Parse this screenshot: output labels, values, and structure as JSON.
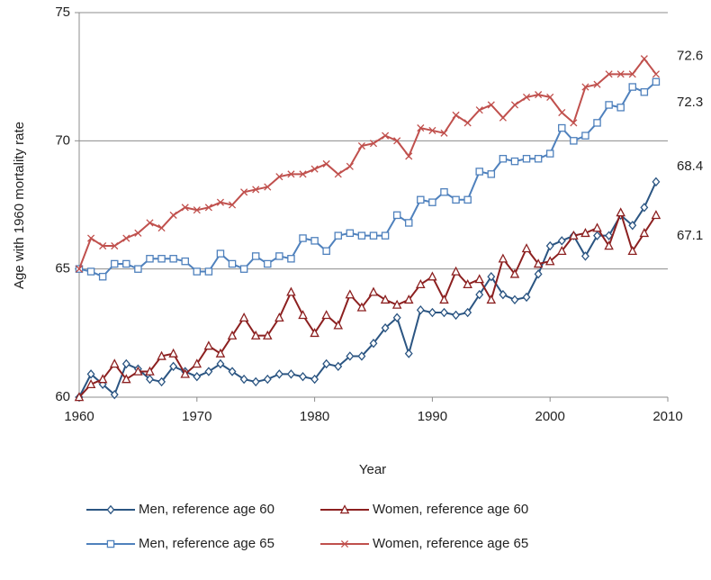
{
  "chart_data": {
    "type": "line",
    "x_label": "Year",
    "y_label": "Age with 1960 mortality rate",
    "x": [
      1960,
      1961,
      1962,
      1963,
      1964,
      1965,
      1966,
      1967,
      1968,
      1969,
      1970,
      1971,
      1972,
      1973,
      1974,
      1975,
      1976,
      1977,
      1978,
      1979,
      1980,
      1981,
      1982,
      1983,
      1984,
      1985,
      1986,
      1987,
      1988,
      1989,
      1990,
      1991,
      1992,
      1993,
      1994,
      1995,
      1996,
      1997,
      1998,
      1999,
      2000,
      2001,
      2002,
      2003,
      2004,
      2005,
      2006,
      2007,
      2008,
      2009
    ],
    "xlim": [
      1960,
      2010
    ],
    "xticks": [
      1960,
      1970,
      1980,
      1990,
      2000,
      2010
    ],
    "ylim": [
      60,
      75
    ],
    "yticks": [
      60,
      65,
      70,
      75
    ],
    "grid": true,
    "legend": "bottom",
    "series": [
      {
        "name": "Men, reference age 60",
        "color": "#2b5582",
        "marker": "diamond",
        "end_label": "68.4",
        "values": [
          60.0,
          60.9,
          60.5,
          60.1,
          61.3,
          61.1,
          60.7,
          60.6,
          61.2,
          61.0,
          60.8,
          61.0,
          61.3,
          61.0,
          60.7,
          60.6,
          60.7,
          60.9,
          60.9,
          60.8,
          60.7,
          61.3,
          61.2,
          61.6,
          61.6,
          62.1,
          62.7,
          63.1,
          61.7,
          63.4,
          63.3,
          63.3,
          63.2,
          63.3,
          64.0,
          64.7,
          64.0,
          63.8,
          63.9,
          64.8,
          65.9,
          66.1,
          66.3,
          65.5,
          66.3,
          66.3,
          67.1,
          66.7,
          67.4,
          68.4
        ]
      },
      {
        "name": "Women, reference age 60",
        "color": "#8c2020",
        "marker": "triangle",
        "end_label": "67.1",
        "values": [
          60.0,
          60.5,
          60.7,
          61.3,
          60.7,
          61.0,
          61.0,
          61.6,
          61.7,
          60.9,
          61.3,
          62.0,
          61.7,
          62.4,
          63.1,
          62.4,
          62.4,
          63.1,
          64.1,
          63.2,
          62.5,
          63.2,
          62.8,
          64.0,
          63.5,
          64.1,
          63.8,
          63.6,
          63.8,
          64.4,
          64.7,
          63.8,
          64.9,
          64.4,
          64.6,
          63.8,
          65.4,
          64.8,
          65.8,
          65.2,
          65.3,
          65.7,
          66.3,
          66.4,
          66.6,
          65.9,
          67.2,
          65.7,
          66.4,
          67.1
        ]
      },
      {
        "name": "Men, reference age 65",
        "color": "#4f81bd",
        "marker": "square",
        "end_label": "72.3",
        "values": [
          65.0,
          64.9,
          64.7,
          65.2,
          65.2,
          65.0,
          65.4,
          65.4,
          65.4,
          65.3,
          64.9,
          64.9,
          65.6,
          65.2,
          65.0,
          65.5,
          65.2,
          65.5,
          65.4,
          66.2,
          66.1,
          65.7,
          66.3,
          66.4,
          66.3,
          66.3,
          66.3,
          67.1,
          66.8,
          67.7,
          67.6,
          68.0,
          67.7,
          67.7,
          68.8,
          68.7,
          69.3,
          69.2,
          69.3,
          69.3,
          69.5,
          70.5,
          70.0,
          70.2,
          70.7,
          71.4,
          71.3,
          72.1,
          71.9,
          72.3
        ]
      },
      {
        "name": "Women, reference age 65",
        "color": "#c0504d",
        "marker": "cross",
        "end_label": "72.6",
        "values": [
          65.0,
          66.2,
          65.9,
          65.9,
          66.2,
          66.4,
          66.8,
          66.6,
          67.1,
          67.4,
          67.3,
          67.4,
          67.6,
          67.5,
          68.0,
          68.1,
          68.2,
          68.6,
          68.7,
          68.7,
          68.9,
          69.1,
          68.7,
          69.0,
          69.8,
          69.9,
          70.2,
          70.0,
          69.4,
          70.5,
          70.4,
          70.3,
          71.0,
          70.7,
          71.2,
          71.4,
          70.9,
          71.4,
          71.7,
          71.8,
          71.7,
          71.1,
          70.7,
          72.1,
          72.2,
          72.6,
          72.6,
          72.6,
          73.2,
          72.6
        ]
      }
    ]
  }
}
